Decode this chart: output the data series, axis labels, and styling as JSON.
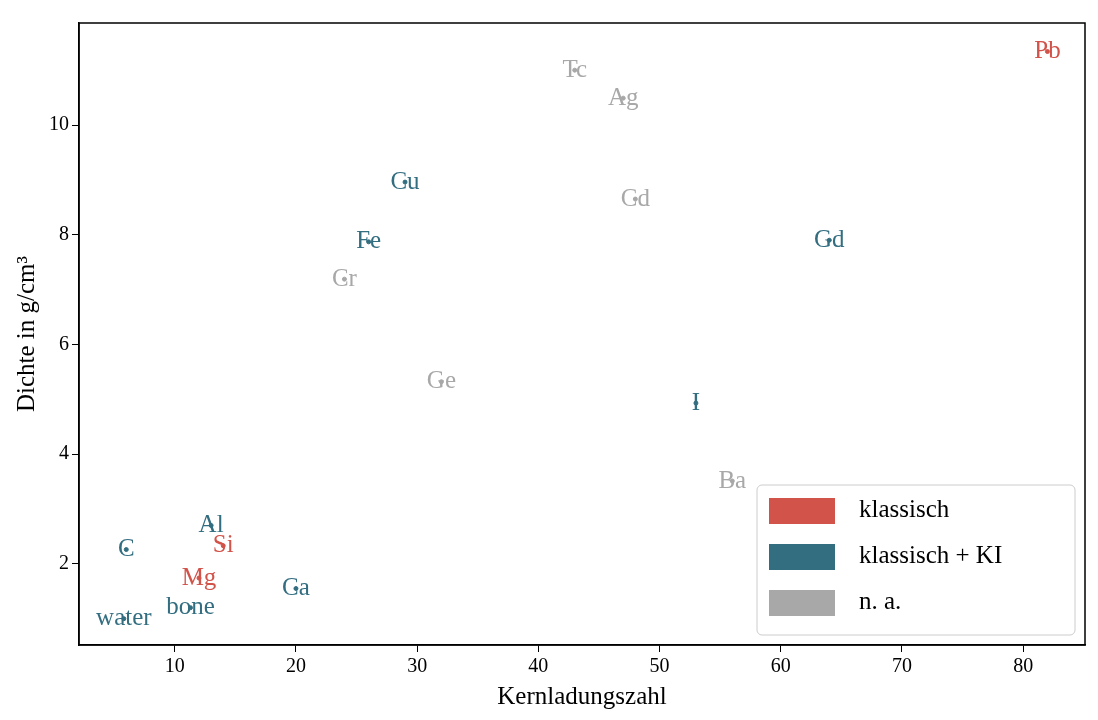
{
  "chart_data": {
    "type": "scatter",
    "xlabel": "Kernladungszahl",
    "ylabel": "Dichte in g/cm³",
    "xlim": [
      2.1,
      85.1
    ],
    "ylim": [
      0.52,
      11.86
    ],
    "xticks": [
      10,
      20,
      30,
      40,
      50,
      60,
      70,
      80
    ],
    "yticks": [
      2,
      4,
      6,
      8,
      10
    ],
    "grid": false,
    "legend": "bottom right",
    "series": [
      {
        "name": "klassisch",
        "color": "#d1534a",
        "x": [
          82,
          14,
          12
        ],
        "values": [
          11.34,
          2.33,
          1.74
        ],
        "value_labels": [
          "Pb",
          "Si",
          "Mg"
        ]
      },
      {
        "name": "klassisch + KI",
        "color": "#336e80",
        "x": [
          29,
          26,
          64,
          53,
          13,
          6,
          20,
          11.3,
          5.8
        ],
        "values": [
          8.96,
          7.87,
          7.9,
          4.93,
          2.7,
          2.26,
          1.55,
          1.2,
          1.0
        ],
        "value_labels": [
          "Cu",
          "Fe",
          "Gd",
          "I",
          "Al",
          "C",
          "Ca",
          "bone",
          "water"
        ]
      },
      {
        "name": "n. a.",
        "color": "#a8a8a8",
        "x": [
          43,
          47,
          48,
          24,
          32,
          56
        ],
        "values": [
          11.0,
          10.49,
          8.65,
          7.19,
          5.32,
          3.51
        ],
        "value_labels": [
          "Tc",
          "Ag",
          "Cd",
          "Cr",
          "Ge",
          "Ba"
        ]
      }
    ]
  }
}
